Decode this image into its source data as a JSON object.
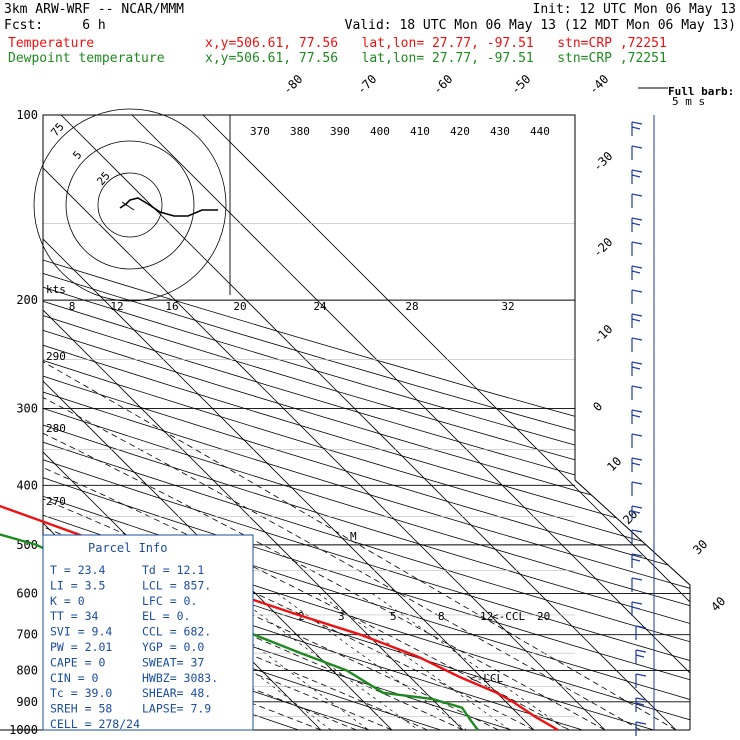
{
  "header": {
    "line1_left": "3km ARW-WRF -- NCAR/MMM",
    "line1_right": "Init: 12 UTC Mon 06 May 13",
    "line2_left": "Fcst:     6 h",
    "line2_right": "Valid: 18 UTC Mon 06 May 13 (12 MDT Mon 06 May 13)",
    "temp_label": "Temperature",
    "temp_info": "x,y=506.61, 77.56   lat,lon= 27.77, -97.51   stn=CRP ,72251",
    "dew_label": "Dewpoint temperature",
    "dew_info": "x,y=506.61, 77.56   lat,lon= 27.77, -97.51   stn=CRP ,72251"
  },
  "colors": {
    "temperature": "#ee1111",
    "dewpoint": "#1f8a1f",
    "parcel_box": "#1a4ea0",
    "barbs": "#1a3aa0"
  },
  "chart_data": {
    "type": "skew-t",
    "pressure_levels": [
      100,
      200,
      300,
      400,
      500,
      600,
      700,
      800,
      900,
      1000
    ],
    "isotherm_labels": [
      "-80",
      "-70",
      "-60",
      "-50",
      "-40",
      "-30",
      "-20",
      "-10",
      "0",
      "10",
      "20",
      "30",
      "40"
    ],
    "potential_temp_labels": [
      "370",
      "380",
      "390",
      "400",
      "410",
      "420",
      "430",
      "440"
    ],
    "theta_e_labels": [
      "290",
      "280",
      "270"
    ],
    "mixing_ratio_labels": [
      "2",
      "3",
      "5",
      "8",
      "12",
      "20"
    ],
    "hodograph": {
      "kts_label": "kts",
      "ring_labels": [
        "5",
        "25",
        "75"
      ],
      "speed_labels": [
        "8",
        "12",
        "16",
        "20",
        "24",
        "28",
        "32"
      ]
    },
    "barb_legend": {
      "line1": "Full barb:",
      "line2": "5 m s"
    },
    "ccl_label": "<-CCL",
    "lcl_label": "<-LCL",
    "m_label": "M",
    "temperature_profile": [
      [
        100,
        -64
      ],
      [
        130,
        -60
      ],
      [
        160,
        -58
      ],
      [
        190,
        -60
      ],
      [
        210,
        -57
      ],
      [
        250,
        -52
      ],
      [
        300,
        -44
      ],
      [
        350,
        -37
      ],
      [
        400,
        -29
      ],
      [
        450,
        -21
      ],
      [
        500,
        -14
      ],
      [
        550,
        -8
      ],
      [
        600,
        -3
      ],
      [
        650,
        3
      ],
      [
        700,
        9
      ],
      [
        760,
        14
      ],
      [
        820,
        17
      ],
      [
        870,
        20
      ],
      [
        900,
        21
      ],
      [
        950,
        22
      ],
      [
        1000,
        23.4
      ]
    ],
    "dewpoint_profile": [
      [
        100,
        -95
      ],
      [
        130,
        -92
      ],
      [
        150,
        -88
      ],
      [
        190,
        -86
      ],
      [
        210,
        -80
      ],
      [
        250,
        -68
      ],
      [
        280,
        -60
      ],
      [
        300,
        -58
      ],
      [
        330,
        -58
      ],
      [
        360,
        -52
      ],
      [
        400,
        -44
      ],
      [
        450,
        -34
      ],
      [
        500,
        -24
      ],
      [
        550,
        -20
      ],
      [
        600,
        -16
      ],
      [
        650,
        -12
      ],
      [
        700,
        -6
      ],
      [
        750,
        -2
      ],
      [
        800,
        2
      ],
      [
        870,
        4
      ],
      [
        890,
        10
      ],
      [
        920,
        13
      ],
      [
        960,
        12.5
      ],
      [
        1000,
        12.1
      ]
    ],
    "wind_barb_count": 26
  },
  "parcel_info": {
    "title": "Parcel Info",
    "rows": [
      [
        "T  =    23.4",
        "Td =  12.1"
      ],
      [
        "LI =     3.5",
        "LCL =  857."
      ],
      [
        "K  =       0",
        "LFC =    0."
      ],
      [
        "TT =      34",
        "EL  =    0."
      ],
      [
        "SVI =    9.4",
        "CCL =  682."
      ],
      [
        "PW =    2.01",
        "YGP =  0.0"
      ],
      [
        "CAPE =     0",
        "SWEAT=   37"
      ],
      [
        "CIN =      0",
        "HWBZ= 3083."
      ],
      [
        "Tc =    39.0",
        "SHEAR=  48."
      ],
      [
        "SREH =    58",
        "LAPSE=  7.9"
      ],
      [
        "CELL = 278/24",
        ""
      ]
    ]
  }
}
